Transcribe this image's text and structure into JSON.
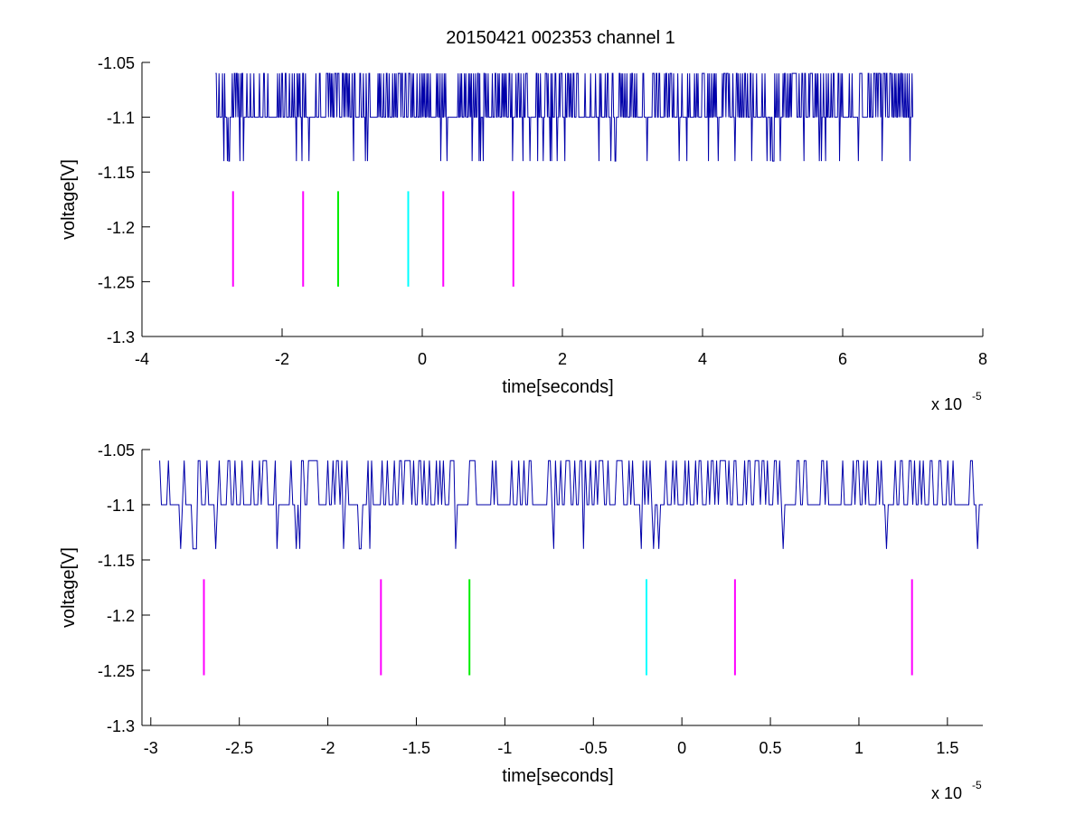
{
  "chart_data": [
    {
      "type": "line",
      "title": "20150421 002353 channel 1",
      "xlabel": "time[seconds]",
      "ylabel": "voltage[V]",
      "x_exponent": {
        "base": "x 10",
        "power": "-5"
      },
      "xlim": [
        -4,
        8
      ],
      "ylim": [
        -1.3,
        -1.05
      ],
      "xticks": [
        -4,
        -2,
        0,
        2,
        4,
        6,
        8
      ],
      "xtick_labels": [
        "-4",
        "-2",
        "0",
        "2",
        "4",
        "6",
        "8"
      ],
      "yticks": [
        -1.3,
        -1.25,
        -1.2,
        -1.15,
        -1.1,
        -1.05
      ],
      "ytick_labels": [
        "-1.3",
        "-1.25",
        "-1.2",
        "-1.15",
        "-1.1",
        "-1.05"
      ],
      "signal": {
        "color": "#0000aa",
        "x_start": -2.95,
        "x_end": 7.0,
        "baseline": -1.1,
        "high": -1.06,
        "low": -1.14,
        "samples": 1000
      },
      "markers": [
        {
          "x": -2.7,
          "color": "#ff00ff"
        },
        {
          "x": -1.7,
          "color": "#ff00ff"
        },
        {
          "x": -1.2,
          "color": "#00ee00"
        },
        {
          "x": -0.2,
          "color": "#00ffff"
        },
        {
          "x": 0.3,
          "color": "#ff00ff"
        },
        {
          "x": 1.3,
          "color": "#ff00ff"
        }
      ],
      "marker_y": [
        -1.1675,
        -1.2545
      ]
    },
    {
      "type": "line",
      "title": "",
      "xlabel": "time[seconds]",
      "ylabel": "voltage[V]",
      "x_exponent": {
        "base": "x 10",
        "power": "-5"
      },
      "xlim": [
        -3.05,
        1.7
      ],
      "ylim": [
        -1.3,
        -1.05
      ],
      "xticks": [
        -3,
        -2.5,
        -2,
        -1.5,
        -1,
        -0.5,
        0,
        0.5,
        1,
        1.5
      ],
      "xtick_labels": [
        "-3",
        "-2.5",
        "-2",
        "-1.5",
        "-1",
        "-0.5",
        "0",
        "0.5",
        "1",
        "1.5"
      ],
      "yticks": [
        -1.3,
        -1.25,
        -1.2,
        -1.15,
        -1.1,
        -1.05
      ],
      "ytick_labels": [
        "-1.3",
        "-1.25",
        "-1.2",
        "-1.15",
        "-1.1",
        "-1.05"
      ],
      "signal": {
        "color": "#0000aa",
        "x_start": -2.95,
        "x_end": 1.7,
        "baseline": -1.1,
        "high": -1.06,
        "low": -1.14,
        "samples": 470
      },
      "markers": [
        {
          "x": -2.7,
          "color": "#ff00ff"
        },
        {
          "x": -1.7,
          "color": "#ff00ff"
        },
        {
          "x": -1.2,
          "color": "#00ee00"
        },
        {
          "x": -0.2,
          "color": "#00ffff"
        },
        {
          "x": 0.3,
          "color": "#ff00ff"
        },
        {
          "x": 1.3,
          "color": "#ff00ff"
        }
      ],
      "marker_y": [
        -1.1675,
        -1.2545
      ]
    }
  ]
}
